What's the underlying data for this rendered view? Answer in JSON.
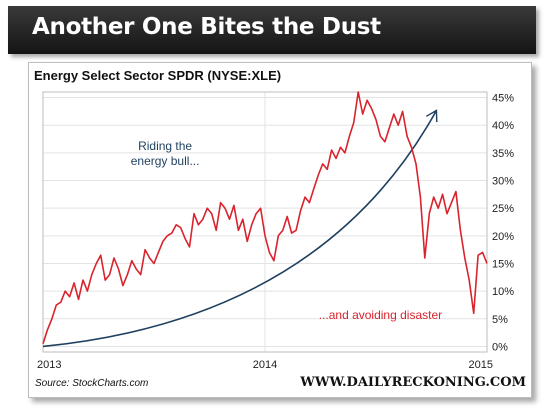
{
  "header": {
    "title": "Another One Bites the Dust"
  },
  "footer": {
    "source": "Source: StockCharts.com",
    "brand": "WWW.DAILYRECKONING.COM"
  },
  "colors": {
    "series": "#d9232d",
    "arrow": "#1f3f5f",
    "annotation_bull": "#1f3f5f",
    "annotation_disaster": "#d9232d"
  },
  "chart_data": {
    "type": "line",
    "title": "Energy Select Sector SPDR (NYSE:XLE)",
    "xlabel": "",
    "ylabel": "",
    "xlim": [
      2013.0,
      2015.0
    ],
    "ylim": [
      -1,
      46
    ],
    "x_ticks": [
      {
        "value": 2013,
        "label": "2013"
      },
      {
        "value": 2014,
        "label": "2014"
      },
      {
        "value": 2015,
        "label": "2015"
      }
    ],
    "y_ticks": [
      {
        "value": 0,
        "label": "0%"
      },
      {
        "value": 5,
        "label": "5%"
      },
      {
        "value": 10,
        "label": "10%"
      },
      {
        "value": 15,
        "label": "15%"
      },
      {
        "value": 20,
        "label": "20%"
      },
      {
        "value": 25,
        "label": "25%"
      },
      {
        "value": 30,
        "label": "30%"
      },
      {
        "value": 35,
        "label": "35%"
      },
      {
        "value": 40,
        "label": "40%"
      },
      {
        "value": 45,
        "label": "45%"
      }
    ],
    "grid": true,
    "series": [
      {
        "x": [
          2013.0,
          2013.02,
          2013.04,
          2013.06,
          2013.08,
          2013.1,
          2013.12,
          2013.14,
          2013.16,
          2013.18,
          2013.2,
          2013.22,
          2013.24,
          2013.26,
          2013.28,
          2013.3,
          2013.32,
          2013.34,
          2013.36,
          2013.38,
          2013.4,
          2013.42,
          2013.44,
          2013.46,
          2013.48,
          2013.5,
          2013.52,
          2013.54,
          2013.56,
          2013.58,
          2013.6,
          2013.62,
          2013.64,
          2013.66,
          2013.68,
          2013.7,
          2013.72,
          2013.74,
          2013.76,
          2013.78,
          2013.8,
          2013.82,
          2013.84,
          2013.86,
          2013.88,
          2013.9,
          2013.92,
          2013.94,
          2013.96,
          2013.98,
          2014.0,
          2014.02,
          2014.04,
          2014.06,
          2014.08,
          2014.1,
          2014.12,
          2014.14,
          2014.16,
          2014.18,
          2014.2,
          2014.22,
          2014.24,
          2014.26,
          2014.28,
          2014.3,
          2014.32,
          2014.34,
          2014.36,
          2014.38,
          2014.4,
          2014.42,
          2014.44,
          2014.46,
          2014.48,
          2014.5,
          2014.52,
          2014.54,
          2014.56,
          2014.58,
          2014.6,
          2014.62,
          2014.64,
          2014.66,
          2014.68,
          2014.7,
          2014.72,
          2014.74,
          2014.76,
          2014.78,
          2014.8,
          2014.82,
          2014.84,
          2014.86,
          2014.88,
          2014.9,
          2014.92,
          2014.94,
          2014.96,
          2014.98,
          2015.0
        ],
        "values": [
          0.5,
          3,
          5,
          7.5,
          8,
          10,
          9,
          11.5,
          8.5,
          12,
          10,
          13,
          15,
          16.5,
          12,
          13,
          16,
          14,
          11,
          13,
          15.5,
          14,
          13,
          17.5,
          16,
          15,
          17,
          19,
          20,
          20.5,
          22,
          21.5,
          19.5,
          18,
          24,
          22,
          23,
          25,
          24,
          21,
          26,
          25,
          23,
          25.5,
          21,
          23,
          19,
          22,
          24,
          25,
          20,
          17,
          15.5,
          20,
          21,
          23.5,
          20.5,
          21,
          24.5,
          27,
          26,
          28.5,
          31,
          33,
          32,
          35.5,
          34,
          36,
          35,
          38,
          40.5,
          46,
          42,
          44.5,
          43,
          41,
          38,
          37,
          39.5,
          42,
          40,
          42.5,
          38,
          36,
          33,
          27,
          16,
          24,
          27,
          25,
          27.5,
          24,
          26,
          28,
          21,
          16,
          12,
          6,
          16.5,
          17,
          15
        ]
      }
    ],
    "annotations": [
      {
        "text_lines": [
          "Riding the",
          "energy bull..."
        ],
        "x": 2013.55,
        "y": 35.5
      },
      {
        "text_lines": [
          "...and avoiding disaster"
        ],
        "x": 2014.52,
        "y": 5
      }
    ]
  }
}
